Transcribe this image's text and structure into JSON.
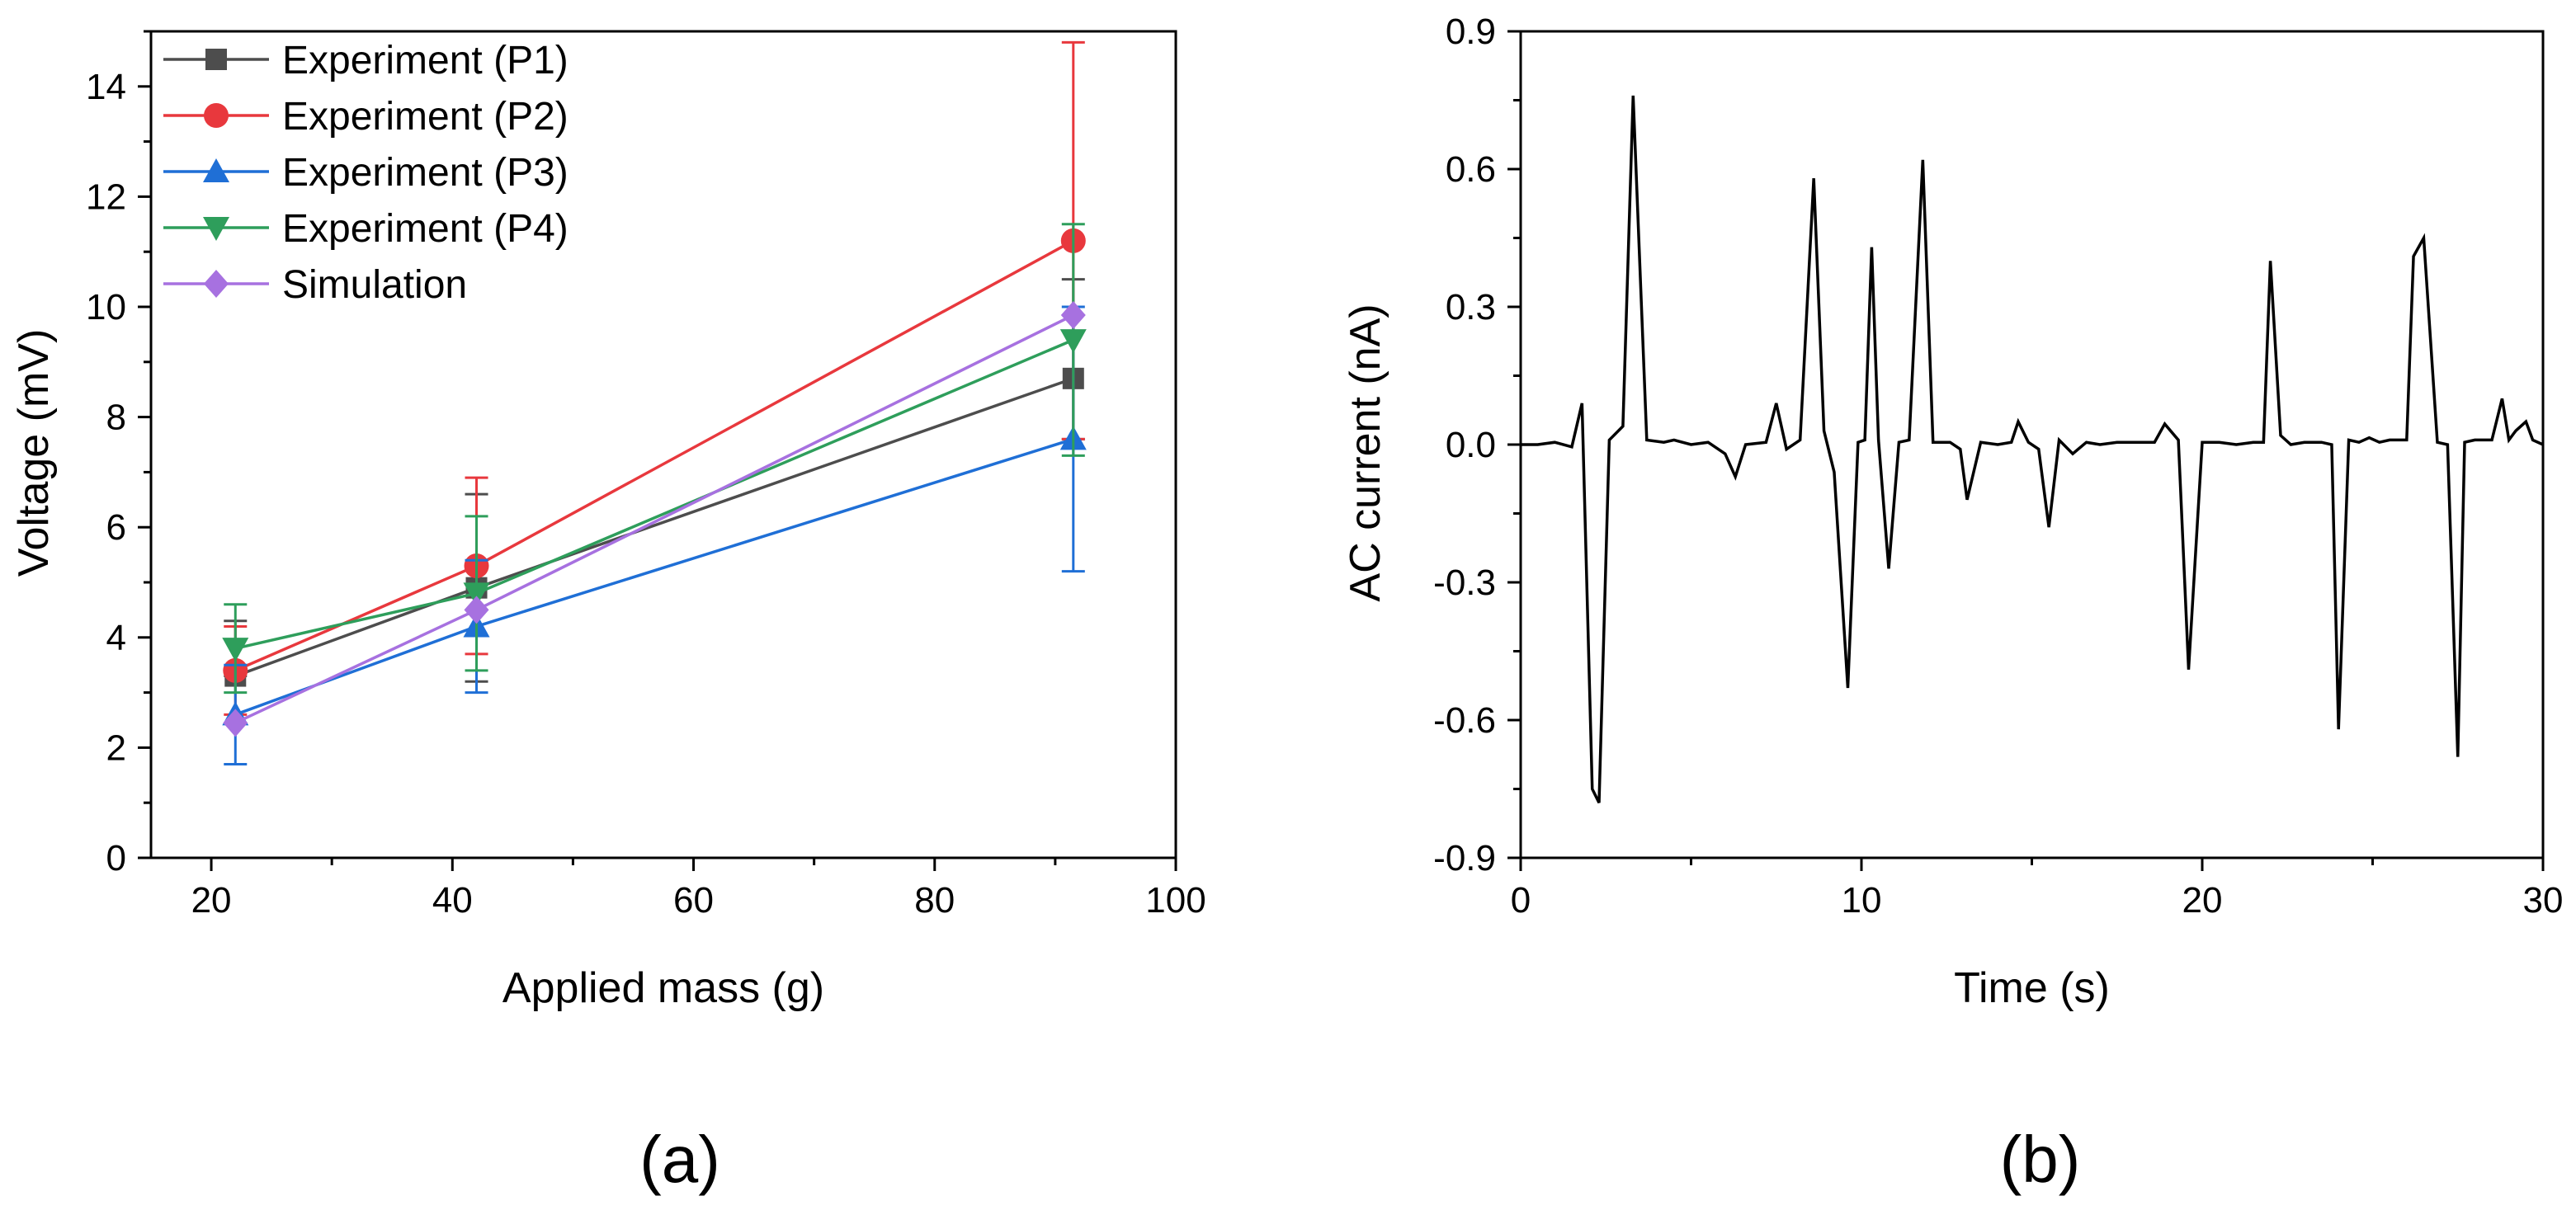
{
  "chart_data": [
    {
      "type": "line",
      "panel_label": "(a)",
      "xlabel": "Applied mass (g)",
      "ylabel": "Voltage (mV)",
      "xlim": [
        15,
        100
      ],
      "ylim": [
        0,
        15
      ],
      "xticks": [
        "20",
        "40",
        "60",
        "80",
        "100"
      ],
      "yticks": [
        "0",
        "2",
        "4",
        "6",
        "8",
        "10",
        "12",
        "14"
      ],
      "x": [
        22,
        42,
        91.5
      ],
      "legend_position": "top-left",
      "series": [
        {
          "name": "Experiment (P1)",
          "color": "#4d4d4d",
          "marker": "square",
          "values": [
            3.3,
            4.9,
            8.7
          ],
          "err_low": [
            3.3,
            3.2,
            7.6
          ],
          "err_high": [
            4.3,
            6.6,
            10.5
          ]
        },
        {
          "name": "Experiment (P2)",
          "color": "#e8383d",
          "marker": "circle",
          "values": [
            3.4,
            5.3,
            11.2
          ],
          "err_low": [
            2.6,
            3.7,
            7.6
          ],
          "err_high": [
            4.2,
            6.9,
            14.8
          ]
        },
        {
          "name": "Experiment (P3)",
          "color": "#1f6fd6",
          "marker": "triangle-up",
          "values": [
            2.6,
            4.2,
            7.6
          ],
          "err_low": [
            1.7,
            3.0,
            5.2
          ],
          "err_high": [
            3.5,
            5.4,
            10.0
          ]
        },
        {
          "name": "Experiment (P4)",
          "color": "#2e9e5b",
          "marker": "triangle-down",
          "values": [
            3.8,
            4.8,
            9.4
          ],
          "err_low": [
            3.0,
            3.4,
            7.3
          ],
          "err_high": [
            4.6,
            6.2,
            11.5
          ]
        },
        {
          "name": "Simulation",
          "color": "#a771e0",
          "marker": "diamond",
          "values": [
            2.45,
            4.5,
            9.85
          ]
        }
      ]
    },
    {
      "type": "line",
      "panel_label": "(b)",
      "xlabel": "Time (s)",
      "ylabel": "AC current (nA)",
      "xlim": [
        0,
        30
      ],
      "ylim": [
        -0.9,
        0.9
      ],
      "xticks": [
        "0",
        "10",
        "20",
        "30"
      ],
      "yticks": [
        "-0.9",
        "-0.6",
        "-0.3",
        "0.0",
        "0.3",
        "0.6",
        "0.9"
      ],
      "series": [
        {
          "name": "AC current",
          "color": "#000000",
          "x": [
            0,
            0.5,
            1.0,
            1.5,
            1.8,
            2.1,
            2.3,
            2.6,
            3.0,
            3.3,
            3.7,
            4.2,
            4.5,
            5.0,
            5.5,
            6.0,
            6.3,
            6.6,
            7.2,
            7.5,
            7.8,
            8.2,
            8.6,
            8.9,
            9.2,
            9.6,
            9.9,
            10.1,
            10.3,
            10.5,
            10.8,
            11.1,
            11.4,
            11.8,
            12.1,
            12.6,
            12.9,
            13.1,
            13.5,
            14.0,
            14.4,
            14.6,
            14.9,
            15.2,
            15.5,
            15.8,
            16.2,
            16.6,
            17.0,
            17.5,
            18.0,
            18.6,
            18.9,
            19.3,
            19.6,
            20.0,
            20.5,
            21.0,
            21.5,
            21.8,
            22.0,
            22.3,
            22.6,
            23.0,
            23.5,
            23.8,
            24.0,
            24.3,
            24.6,
            24.9,
            25.2,
            25.5,
            26.0,
            26.2,
            26.5,
            26.9,
            27.2,
            27.5,
            27.7,
            28.0,
            28.3,
            28.5,
            28.8,
            29.0,
            29.2,
            29.5,
            29.7,
            30.0
          ],
          "y": [
            0,
            0,
            0.005,
            -0.005,
            0.09,
            -0.75,
            -0.78,
            0.01,
            0.04,
            0.76,
            0.01,
            0.005,
            0.01,
            0,
            0.005,
            -0.02,
            -0.07,
            0,
            0.005,
            0.09,
            -0.01,
            0.01,
            0.58,
            0.03,
            -0.06,
            -0.53,
            0.005,
            0.01,
            0.43,
            0.01,
            -0.27,
            0.005,
            0.01,
            0.62,
            0.005,
            0.005,
            -0.01,
            -0.12,
            0.005,
            0,
            0.005,
            0.05,
            0.005,
            -0.01,
            -0.18,
            0.01,
            -0.02,
            0.005,
            0,
            0.005,
            0.005,
            0.005,
            0.045,
            0.01,
            -0.49,
            0.005,
            0.005,
            0,
            0.005,
            0.005,
            0.4,
            0.02,
            0,
            0.005,
            0.005,
            0,
            -0.62,
            0.01,
            0.005,
            0.015,
            0.005,
            0.01,
            0.01,
            0.41,
            0.45,
            0.005,
            0,
            -0.68,
            0.005,
            0.01,
            0.01,
            0.01,
            0.1,
            0.01,
            0.03,
            0.05,
            0.01,
            0
          ]
        }
      ]
    }
  ]
}
